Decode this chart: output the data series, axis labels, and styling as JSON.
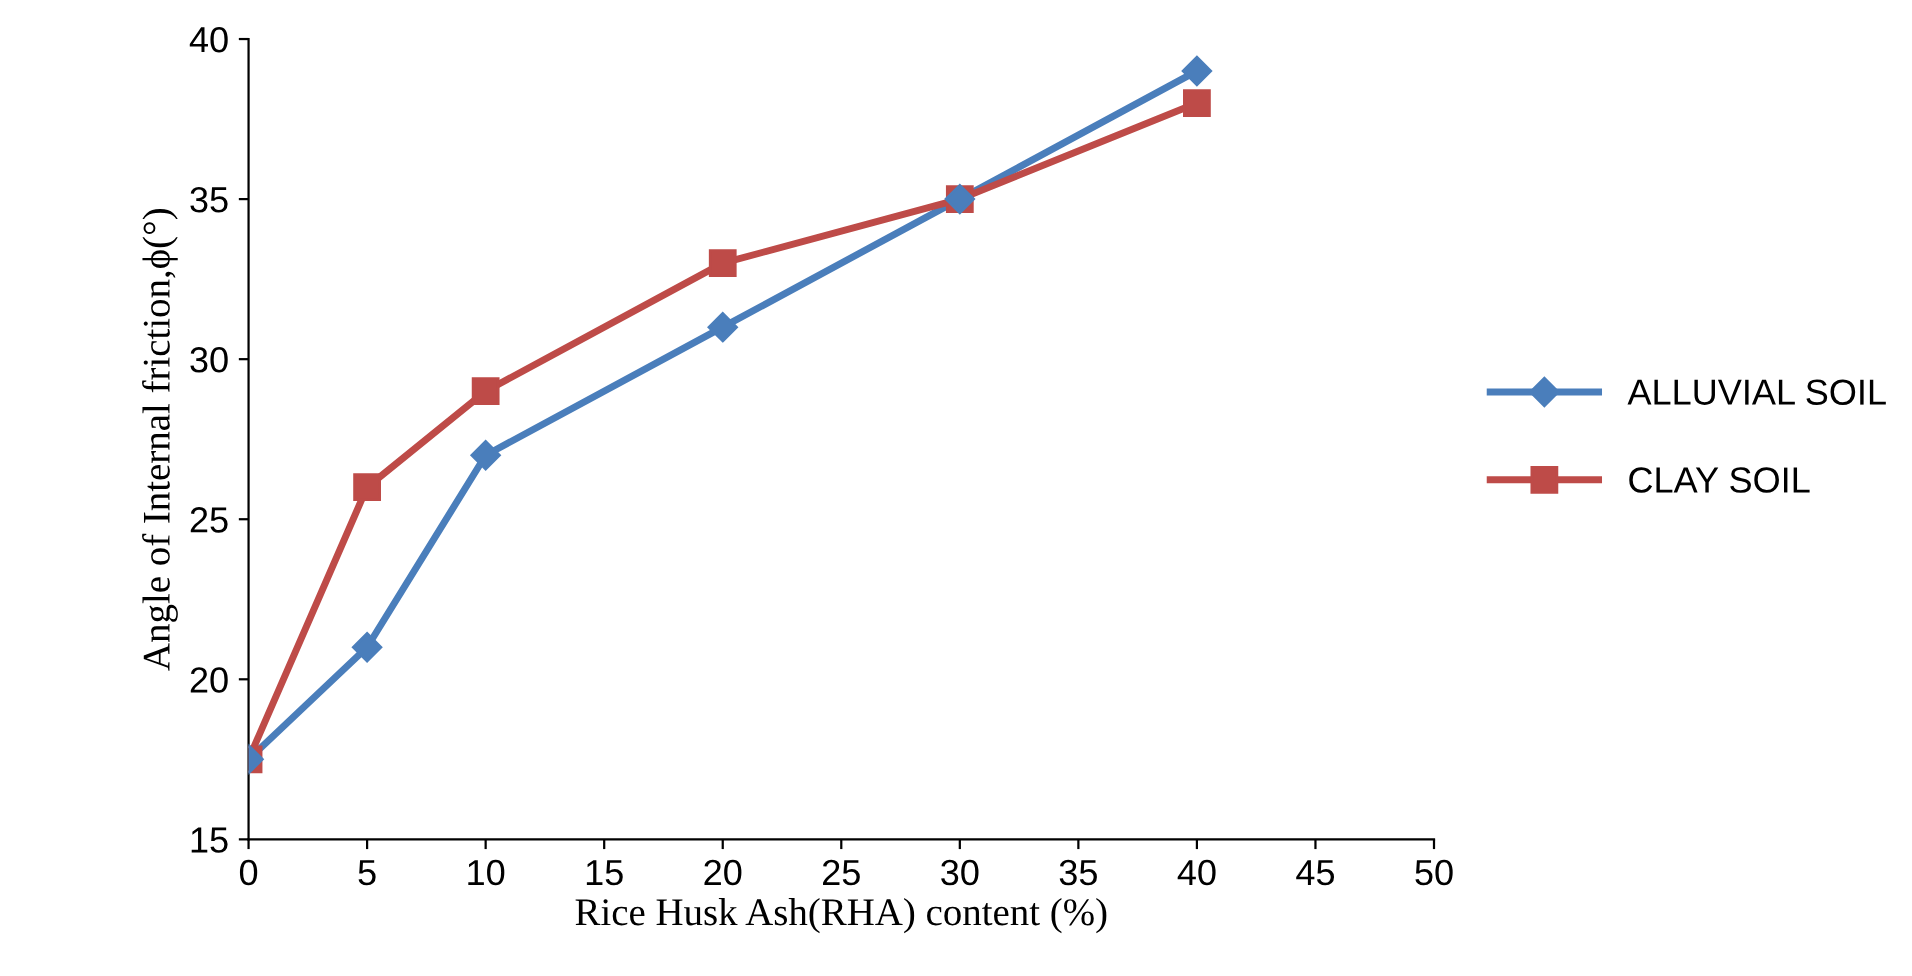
{
  "chart_data": {
    "type": "line",
    "xlabel": "Rice Husk Ash(RHA) content (%)",
    "ylabel": "Angle of Internal friction,ϕ(°)",
    "x": [
      0,
      5,
      10,
      20,
      30,
      40
    ],
    "series": [
      {
        "name": "ALLUVIAL SOIL",
        "color": "#4a7ebb",
        "values": [
          17.5,
          21,
          27,
          31,
          35,
          39
        ],
        "marker": "diamond"
      },
      {
        "name": "CLAY SOIL",
        "color": "#be4b48",
        "values": [
          17.5,
          26,
          29,
          33,
          35,
          38
        ],
        "marker": "square"
      }
    ],
    "xlim": [
      0,
      50
    ],
    "xticks": [
      0,
      5,
      10,
      15,
      20,
      25,
      30,
      35,
      40,
      45,
      50
    ],
    "ylim": [
      15,
      40
    ],
    "yticks": [
      15,
      20,
      25,
      30,
      35,
      40
    ],
    "grid": false,
    "legend": "right",
    "line_style": "solid"
  }
}
